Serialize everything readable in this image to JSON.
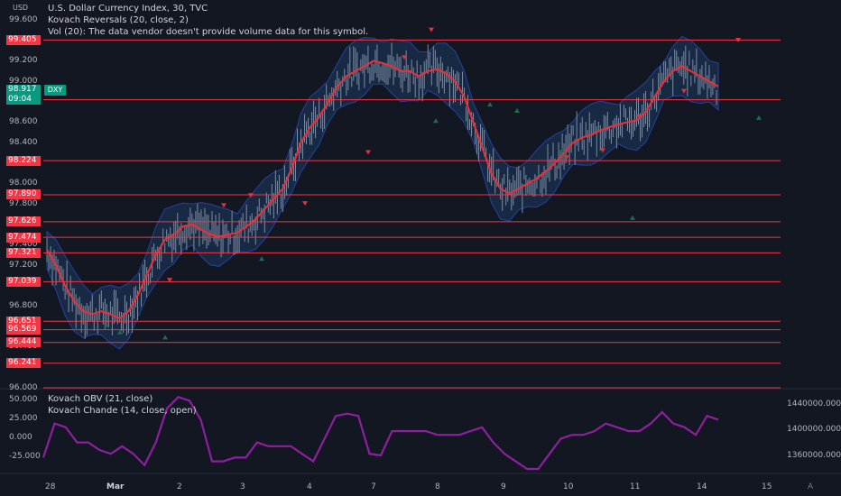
{
  "currency": "USD",
  "legend": {
    "symbol": "U.S. Dollar Currency Index, 30, TVC",
    "reversals": "Kovach Reversals (20, close, 2)",
    "volume": "Vol (20): The data vendor doesn't provide volume data for this symbol.",
    "obv": "Kovach OBV (21, close)",
    "chande": "Kovach Chande (14, close, open)"
  },
  "current_price": {
    "value": "98.917",
    "countdown": "09:04",
    "symbol_tag": "DXY"
  },
  "colors": {
    "background": "#131722",
    "level_line": "#f23645",
    "ma_line": "#e0333c",
    "band_fill": "#1e3a5f",
    "band_edge": "#2342a3",
    "oscillator": "#8e1fa0",
    "up_candle": "#7d8ca3",
    "current": "#089981"
  },
  "chart_data": {
    "type": "line",
    "title": "U.S. Dollar Currency Index, 30, TVC",
    "ylim": [
      96.0,
      99.7
    ],
    "yticks": [
      "99.600",
      "99.200",
      "99.000",
      "98.800",
      "98.600",
      "98.400",
      "98.000",
      "97.800",
      "97.400",
      "97.200",
      "96.800",
      "96.400",
      "96.000"
    ],
    "price_levels": [
      "99.405",
      "98.820",
      "98.224",
      "97.890",
      "97.626",
      "97.474",
      "97.321",
      "97.039",
      "96.651",
      "96.569",
      "96.444",
      "96.241"
    ],
    "x_ticks": [
      {
        "label": "28",
        "bold": false
      },
      {
        "label": "Mar",
        "bold": true
      },
      {
        "label": "2",
        "bold": false
      },
      {
        "label": "3",
        "bold": false
      },
      {
        "label": "4",
        "bold": false
      },
      {
        "label": "7",
        "bold": false
      },
      {
        "label": "8",
        "bold": false
      },
      {
        "label": "9",
        "bold": false
      },
      {
        "label": "10",
        "bold": false
      },
      {
        "label": "11",
        "bold": false
      },
      {
        "label": "14",
        "bold": false
      },
      {
        "label": "15",
        "bold": false
      }
    ],
    "series": [
      {
        "name": "Kovach Reversals (20, close, 2)",
        "x": [
          0,
          10,
          20,
          30,
          40,
          50,
          60,
          70,
          80,
          90,
          100,
          110,
          120,
          130,
          140,
          150,
          160,
          170,
          180,
          190,
          200,
          210,
          220,
          230,
          240,
          250,
          260,
          270,
          280,
          290,
          300,
          310,
          320,
          330,
          340,
          350,
          360,
          370,
          380,
          390,
          400,
          410,
          420,
          430,
          440,
          450,
          460,
          470,
          480,
          490,
          500,
          510,
          520,
          530,
          540,
          550,
          560,
          570,
          580,
          590,
          600,
          610,
          620,
          630,
          640,
          650,
          660,
          670,
          680,
          690,
          700,
          710,
          720,
          730,
          740
        ],
        "y": [
          97.35,
          97.2,
          97.0,
          96.85,
          96.75,
          96.72,
          96.75,
          96.72,
          96.68,
          96.75,
          96.9,
          97.1,
          97.3,
          97.45,
          97.5,
          97.58,
          97.6,
          97.55,
          97.5,
          97.48,
          97.5,
          97.52,
          97.58,
          97.65,
          97.75,
          97.85,
          97.95,
          98.15,
          98.4,
          98.55,
          98.65,
          98.8,
          98.95,
          99.05,
          99.1,
          99.15,
          99.2,
          99.18,
          99.15,
          99.1,
          99.1,
          99.05,
          99.1,
          99.12,
          99.08,
          99.0,
          98.85,
          98.6,
          98.35,
          98.1,
          97.95,
          97.9,
          97.95,
          98.0,
          98.05,
          98.12,
          98.2,
          98.3,
          98.4,
          98.45,
          98.48,
          98.52,
          98.55,
          98.58,
          98.6,
          98.62,
          98.7,
          98.85,
          99.0,
          99.1,
          99.15,
          99.1,
          99.05,
          99.0,
          98.95
        ]
      }
    ],
    "oscillator": {
      "name": "Kovach OBV (21, close)",
      "yticks": [
        "50.000",
        "25.000",
        "0.000",
        "-25.000"
      ],
      "right_ticks": [
        "1440000.000",
        "1400000.000",
        "1360000.000"
      ],
      "ylim": [
        -40,
        60
      ]
    }
  }
}
